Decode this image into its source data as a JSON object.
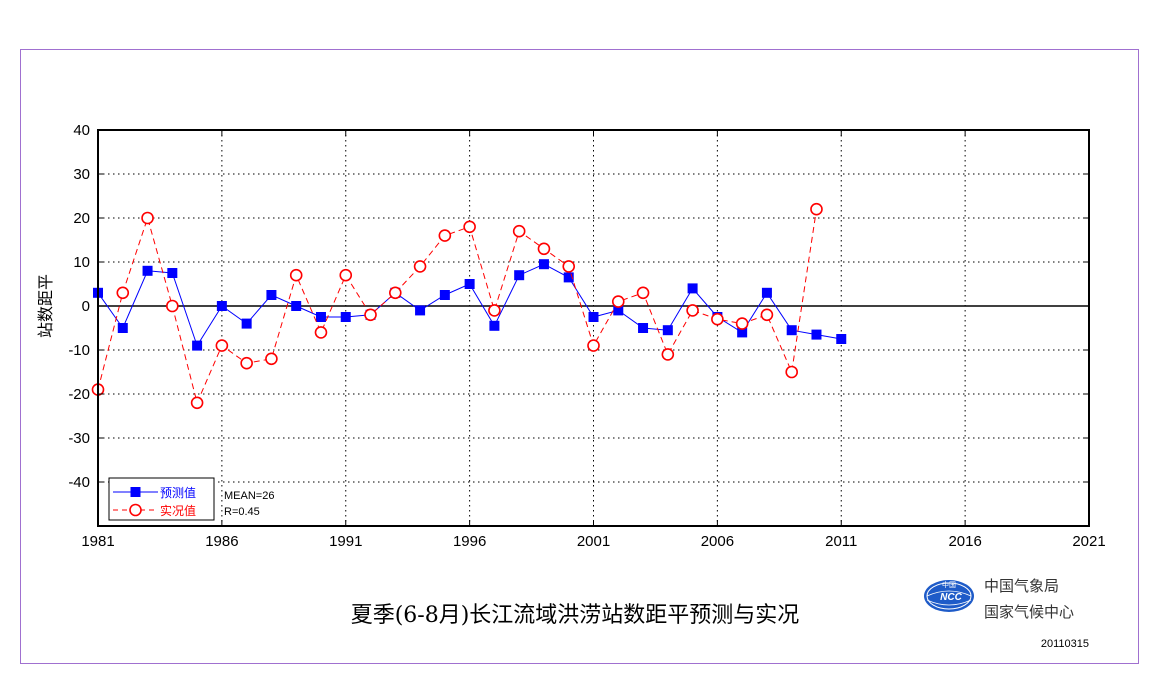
{
  "chart_data": {
    "type": "line",
    "title": "夏季(6-8月)长江流域洪涝站数距平预测与实况",
    "xlabel": "",
    "ylabel": "站数距平",
    "xlim": [
      1981,
      2021
    ],
    "ylim": [
      -50,
      40
    ],
    "x_ticks": [
      "1981",
      "1986",
      "1991",
      "1996",
      "2001",
      "2006",
      "2011",
      "2016",
      "2021"
    ],
    "y_ticks": [
      "40",
      "30",
      "20",
      "10",
      "0",
      "-10",
      "-20",
      "-30",
      "-40"
    ],
    "grid": true,
    "legend_position": "bottom-left",
    "series": [
      {
        "name": "预测值",
        "color": "#0000ff",
        "marker": "square",
        "line": "solid",
        "x": [
          1981,
          1982,
          1983,
          1984,
          1985,
          1986,
          1987,
          1988,
          1989,
          1990,
          1991,
          1992,
          1993,
          1994,
          1995,
          1996,
          1997,
          1998,
          1999,
          2000,
          2001,
          2002,
          2003,
          2004,
          2005,
          2006,
          2007,
          2008,
          2009,
          2010,
          2011
        ],
        "values": [
          3,
          -5,
          8,
          7.5,
          -9,
          0,
          -4,
          2.5,
          0,
          -2.5,
          -2.5,
          -2,
          3,
          -1,
          2.5,
          5,
          -4.5,
          7,
          9.5,
          6.5,
          -2.5,
          -1,
          -5,
          -5.5,
          4,
          -2.5,
          -6,
          3,
          -5.5,
          -6.5,
          -7.5
        ]
      },
      {
        "name": "实况值",
        "color": "#ff0000",
        "marker": "circle",
        "line": "dashed",
        "x": [
          1981,
          1982,
          1983,
          1984,
          1985,
          1986,
          1987,
          1988,
          1989,
          1990,
          1991,
          1992,
          1993,
          1994,
          1995,
          1996,
          1997,
          1998,
          1999,
          2000,
          2001,
          2002,
          2003,
          2004,
          2005,
          2006,
          2007,
          2008,
          2009,
          2010
        ],
        "values": [
          -19,
          3,
          20,
          0,
          -22,
          -9,
          -13,
          -12,
          7,
          -6,
          7,
          -2,
          3,
          9,
          16,
          18,
          -1,
          17,
          13,
          9,
          -9,
          1,
          3,
          -11,
          -1,
          -3,
          -4,
          -2,
          -15,
          22
        ]
      }
    ],
    "annotations": {
      "mean": "MEAN=26",
      "r": "R=0.45"
    }
  },
  "org": {
    "line1": "中国气象局",
    "line2": "国家气候中心",
    "logo_text": "NCC",
    "logo_top": "中国",
    "date": "20110315"
  },
  "colors": {
    "frame": "#a070d0",
    "predicted": "#0000ff",
    "observed": "#ff0000",
    "logo": "#1e5bc8"
  }
}
